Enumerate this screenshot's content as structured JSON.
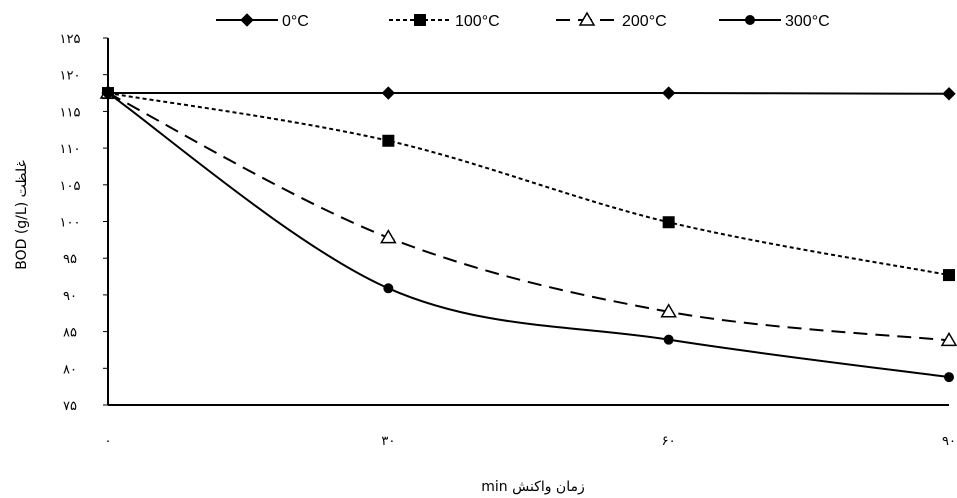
{
  "chart_data": {
    "type": "line",
    "xlabel": "زمان واکنش min",
    "ylabel": "غلظت BOD (g/L)",
    "x": [
      0,
      30,
      60,
      90
    ],
    "x_tick_labels": [
      "۰",
      "۳۰",
      "۶۰",
      "۹۰"
    ],
    "xlim": [
      0,
      90
    ],
    "ylim": [
      75,
      125
    ],
    "y_ticks": [
      75,
      80,
      85,
      90,
      95,
      100,
      105,
      110,
      115,
      120,
      125
    ],
    "y_tick_labels": [
      "۷۵",
      "۸۰",
      "۸۵",
      "۹۰",
      "۹۵",
      "۱۰۰",
      "۱۰۵",
      "۱۱۰",
      "۱۱۵",
      "۱۲۰",
      "۱۲۵"
    ],
    "grid": false,
    "legend_position": "top",
    "series": [
      {
        "name": "0°C",
        "values": [
          117.5,
          117.5,
          117.5,
          117.4
        ],
        "marker": "diamond",
        "dash": "solid",
        "color": "#000000"
      },
      {
        "name": "100°C",
        "values": [
          117.5,
          111.0,
          99.9,
          92.7
        ],
        "marker": "square",
        "dash": "dotted",
        "color": "#000000"
      },
      {
        "name": "200°C",
        "values": [
          117.5,
          97.8,
          87.7,
          83.8
        ],
        "marker": "triangle",
        "dash": "dashed",
        "color": "#000000"
      },
      {
        "name": "300°C",
        "values": [
          117.5,
          90.9,
          83.9,
          78.8
        ],
        "marker": "circle",
        "dash": "solid",
        "color": "#000000"
      }
    ]
  }
}
